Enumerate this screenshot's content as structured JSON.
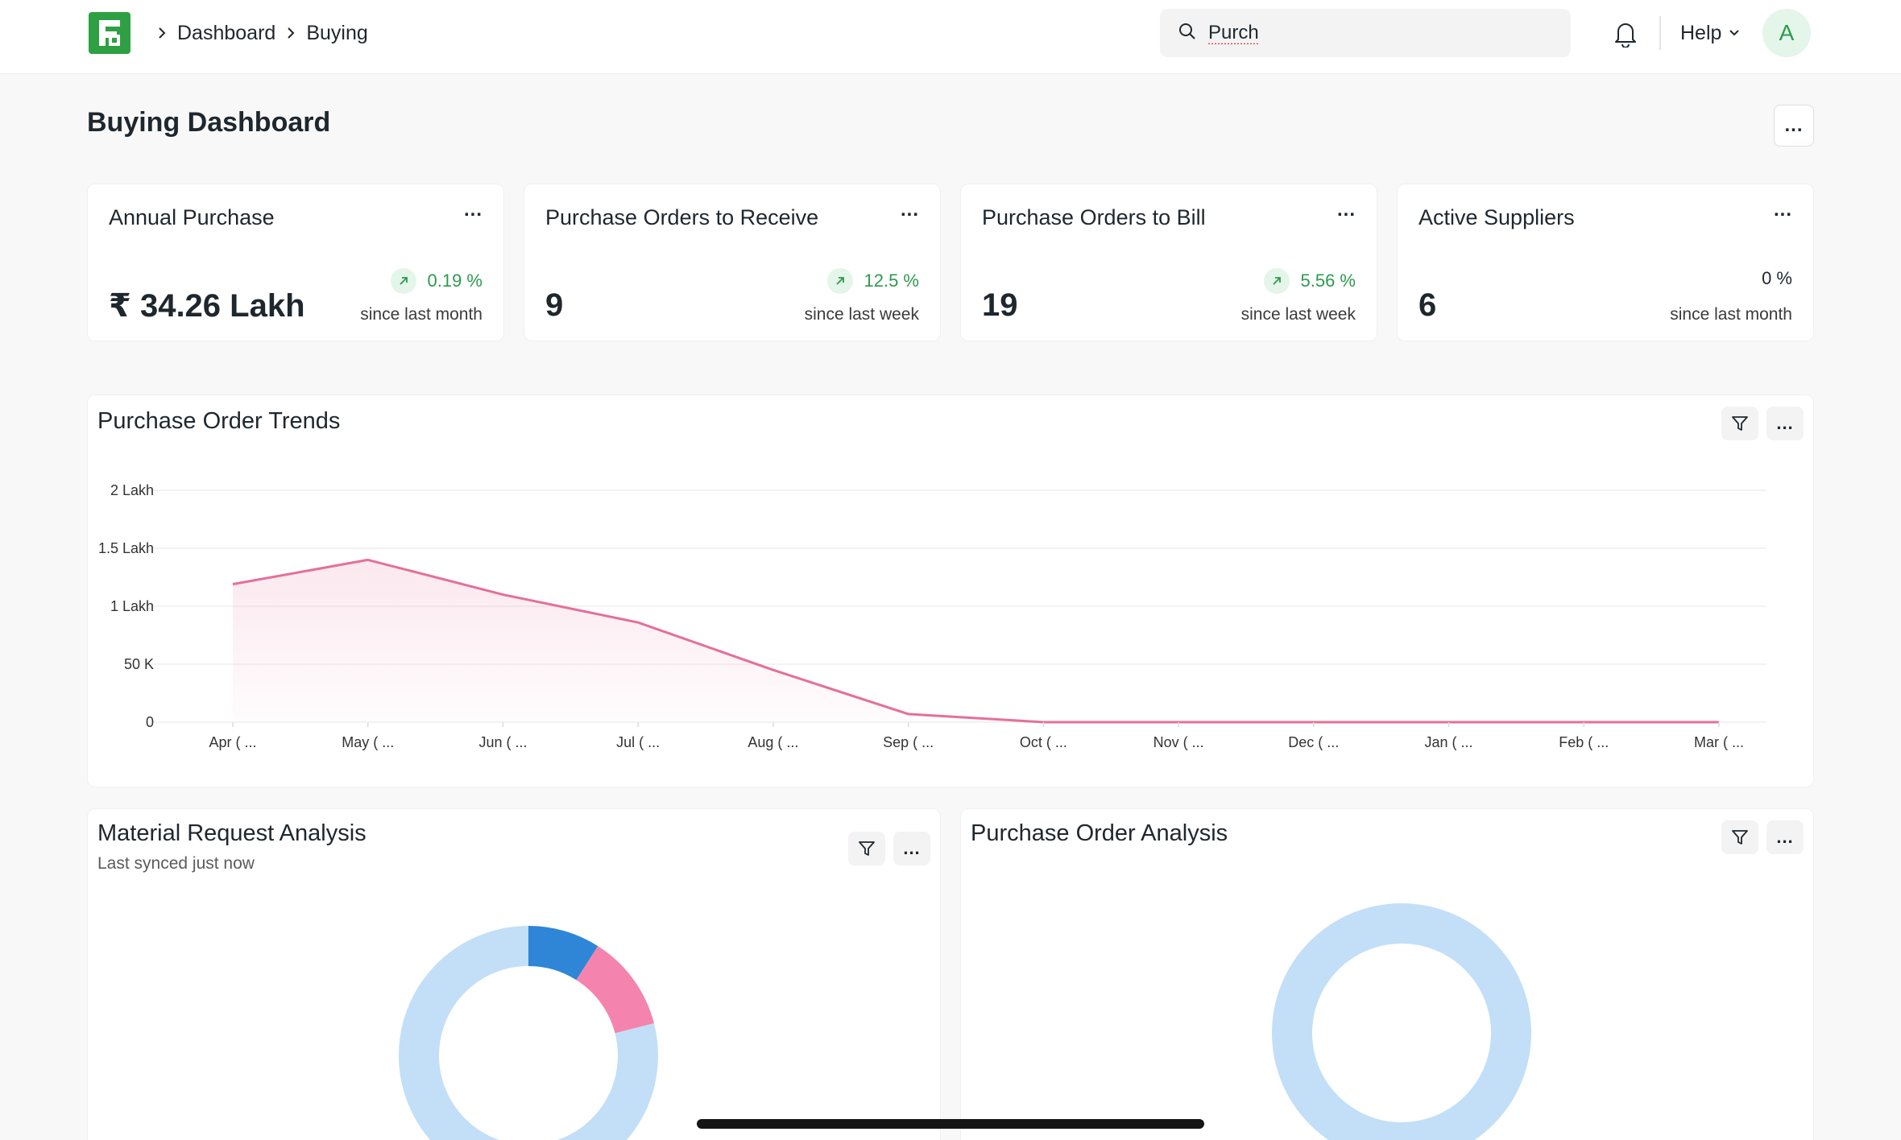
{
  "navbar": {
    "logo_icon": "frappe-logo-icon",
    "breadcrumbs": [
      "Dashboard",
      "Buying"
    ],
    "search": {
      "value": "Purch",
      "placeholder": ""
    },
    "help_label": "Help",
    "avatar_initial": "A"
  },
  "page": {
    "title": "Buying Dashboard"
  },
  "number_cards": [
    {
      "title": "Annual Purchase",
      "value": "₹ 34.26 Lakh",
      "change": "0.19 %",
      "trend": "up",
      "since": "since last month"
    },
    {
      "title": "Purchase Orders to Receive",
      "value": "9",
      "change": "12.5 %",
      "trend": "up",
      "since": "since last week"
    },
    {
      "title": "Purchase Orders to Bill",
      "value": "19",
      "change": "5.56 %",
      "trend": "up",
      "since": "since last week"
    },
    {
      "title": "Active Suppliers",
      "value": "6",
      "change": "0 %",
      "trend": "none",
      "since": "since last month"
    }
  ],
  "menu_dots": "...",
  "trend_chart": {
    "title": "Purchase Order Trends"
  },
  "material_request": {
    "title": "Material Request Analysis",
    "subtitle": "Last synced just now"
  },
  "purchase_order_analysis": {
    "title": "Purchase Order Analysis"
  },
  "colors": {
    "accent_green": "#2e9a4f",
    "line_pink": "#e56f9a",
    "donut_light_blue": "#c2dff7",
    "donut_blue": "#2f86d6",
    "donut_pink": "#f484ad"
  },
  "chart_data": [
    {
      "type": "area",
      "title": "Purchase Order Trends",
      "categories": [
        "Apr ( ...",
        "May ( ...",
        "Jun ( ...",
        "Jul ( ...",
        "Aug ( ...",
        "Sep ( ...",
        "Oct ( ...",
        "Nov ( ...",
        "Dec ( ...",
        "Jan ( ...",
        "Feb ( ...",
        "Mar ( ..."
      ],
      "values": [
        119000,
        140000,
        110000,
        86000,
        45000,
        7000,
        0,
        0,
        0,
        0,
        0,
        0
      ],
      "y_ticks": [
        "0",
        "50 K",
        "1 Lakh",
        "1.5 Lakh",
        "2 Lakh"
      ],
      "ylim": [
        0,
        200000
      ],
      "grid": true
    },
    {
      "type": "pie",
      "title": "Material Request Analysis",
      "donut": true,
      "slices": [
        {
          "value": 9,
          "color": "#2f86d6"
        },
        {
          "value": 12,
          "color": "#f484ad"
        },
        {
          "value": 79,
          "color": "#c2dff7"
        }
      ]
    },
    {
      "type": "pie",
      "title": "Purchase Order Analysis",
      "donut": true,
      "slices": [
        {
          "value": 100,
          "color": "#c2dff7"
        }
      ]
    }
  ]
}
